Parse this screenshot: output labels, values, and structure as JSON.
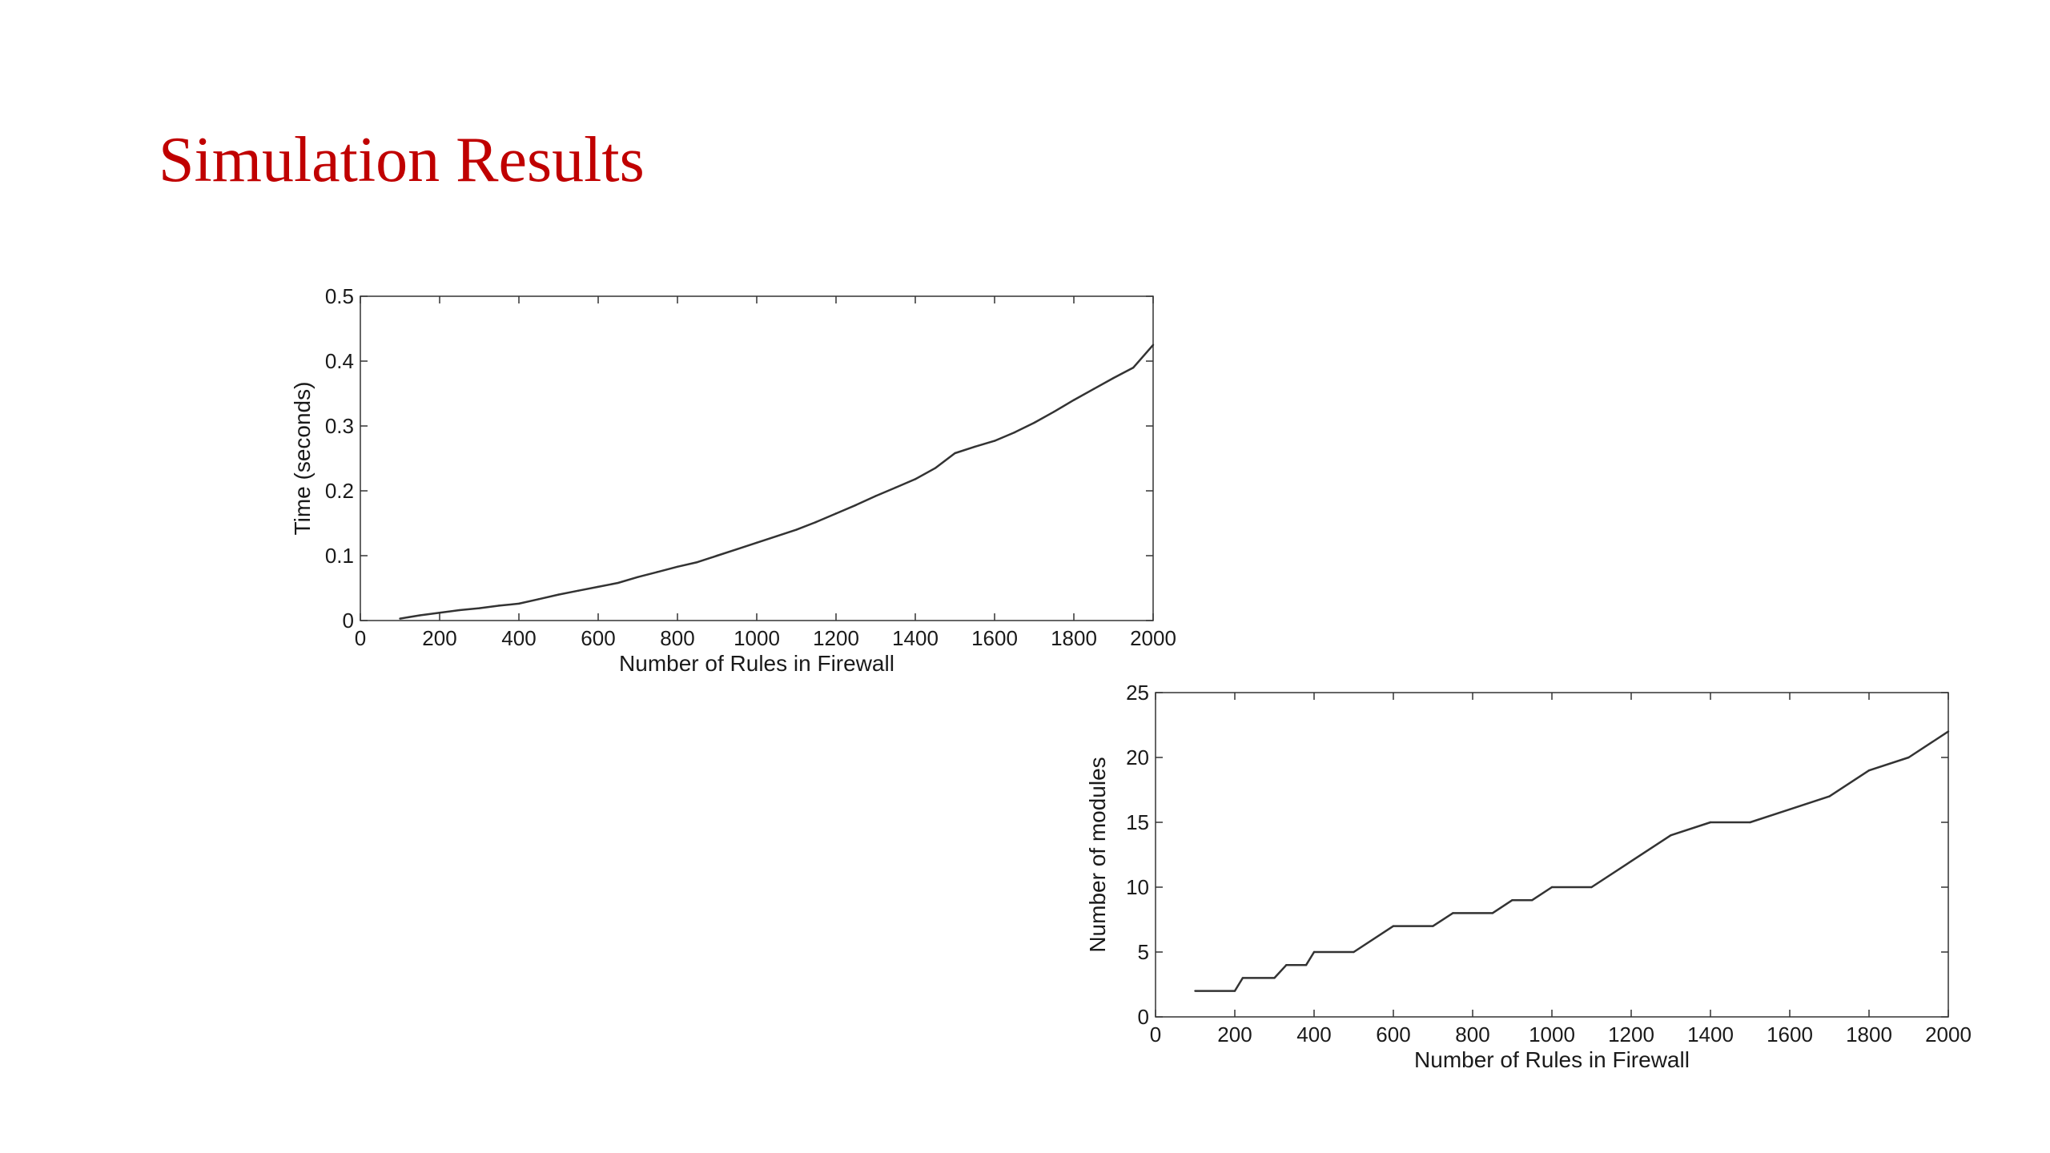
{
  "slide": {
    "title": "Simulation Results",
    "title_color": "#c00000"
  },
  "chart_data": [
    {
      "type": "line",
      "xlabel": "Number of Rules in Firewall",
      "ylabel": "Time (seconds)",
      "xlim": [
        0,
        2000
      ],
      "ylim": [
        0,
        0.5
      ],
      "xticks": [
        0,
        200,
        400,
        600,
        800,
        1000,
        1200,
        1400,
        1600,
        1800,
        2000
      ],
      "yticks": [
        0,
        0.1,
        0.2,
        0.3,
        0.4,
        0.5
      ],
      "ytick_labels": [
        "0",
        "0.1",
        "0.2",
        "0.3",
        "0.4",
        "0.5"
      ],
      "grid": false,
      "line_color": "#333333",
      "series": [
        {
          "x": [
            100,
            150,
            200,
            250,
            300,
            350,
            400,
            450,
            500,
            550,
            600,
            650,
            700,
            750,
            800,
            850,
            900,
            950,
            1000,
            1050,
            1100,
            1150,
            1200,
            1250,
            1300,
            1350,
            1400,
            1450,
            1500,
            1550,
            1600,
            1650,
            1700,
            1750,
            1800,
            1850,
            1900,
            1950,
            2000
          ],
          "y": [
            0.003,
            0.008,
            0.012,
            0.016,
            0.019,
            0.023,
            0.026,
            0.033,
            0.04,
            0.046,
            0.052,
            0.058,
            0.067,
            0.075,
            0.083,
            0.09,
            0.1,
            0.11,
            0.12,
            0.13,
            0.14,
            0.152,
            0.165,
            0.178,
            0.192,
            0.205,
            0.218,
            0.235,
            0.258,
            0.268,
            0.277,
            0.29,
            0.305,
            0.322,
            0.34,
            0.357,
            0.374,
            0.39,
            0.425
          ]
        }
      ]
    },
    {
      "type": "line",
      "xlabel": "Number of Rules in Firewall",
      "ylabel": "Number of modules",
      "xlim": [
        0,
        2000
      ],
      "ylim": [
        0,
        25
      ],
      "xticks": [
        0,
        200,
        400,
        600,
        800,
        1000,
        1200,
        1400,
        1600,
        1800,
        2000
      ],
      "yticks": [
        0,
        5,
        10,
        15,
        20,
        25
      ],
      "ytick_labels": [
        "0",
        "5",
        "10",
        "15",
        "20",
        "25"
      ],
      "grid": false,
      "line_color": "#333333",
      "series": [
        {
          "x": [
            100,
            200,
            220,
            300,
            330,
            380,
            400,
            500,
            600,
            700,
            750,
            850,
            900,
            950,
            1000,
            1100,
            1200,
            1300,
            1400,
            1500,
            1600,
            1700,
            1800,
            1900,
            2000
          ],
          "y": [
            2,
            2,
            3,
            3,
            4,
            4,
            5,
            5,
            7,
            7,
            8,
            8,
            9,
            9,
            10,
            10,
            12,
            14,
            15,
            15,
            16,
            17,
            19,
            20,
            22
          ]
        }
      ]
    }
  ]
}
